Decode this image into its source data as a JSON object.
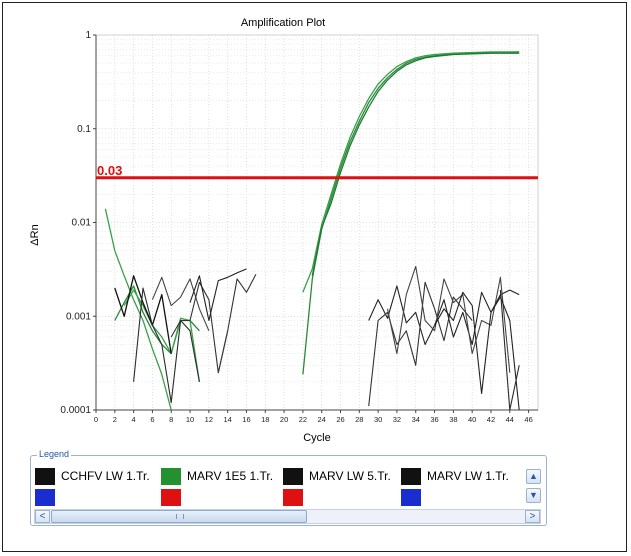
{
  "chart_data": {
    "type": "line",
    "title": "Amplification Plot",
    "xlabel": "Cycle",
    "ylabel": "ΔRn",
    "xlim": [
      0,
      47
    ],
    "ylim": [
      0.0001,
      1
    ],
    "y_scale": "log",
    "x_ticks": [
      0,
      2,
      4,
      6,
      8,
      10,
      12,
      14,
      16,
      18,
      20,
      22,
      24,
      26,
      28,
      30,
      32,
      34,
      36,
      38,
      40,
      42,
      44,
      46
    ],
    "y_ticks": [
      {
        "value": 1,
        "label": "1"
      },
      {
        "value": 0.1,
        "label": "0.1"
      },
      {
        "value": 0.01,
        "label": "0.01"
      },
      {
        "value": 0.001,
        "label": "0.001"
      },
      {
        "value": 0.0001,
        "label": "0.0001"
      }
    ],
    "grid": true,
    "threshold": {
      "value": 0.03,
      "label": "0.03",
      "color": "#dd1111"
    },
    "series": [
      {
        "name": "MARV 1E5 1.Tr.",
        "color": "#2a8a3a",
        "x": [
          22,
          23,
          24,
          25,
          26,
          27,
          28,
          29,
          30,
          31,
          32,
          33,
          34,
          35,
          36,
          38,
          40,
          42,
          45
        ],
        "y": [
          0.00024,
          0.0025,
          0.0085,
          0.018,
          0.038,
          0.072,
          0.12,
          0.19,
          0.27,
          0.35,
          0.43,
          0.5,
          0.55,
          0.58,
          0.6,
          0.63,
          0.64,
          0.65,
          0.66
        ]
      },
      {
        "name": "MARV 1E5 1.Tr.",
        "color": "#3aa04a",
        "x": [
          22,
          23,
          24,
          25,
          26,
          27,
          28,
          29,
          30,
          31,
          32,
          33,
          34,
          35,
          36,
          38,
          40,
          42,
          45
        ],
        "y": [
          0.0018,
          0.0032,
          0.0095,
          0.02,
          0.042,
          0.08,
          0.135,
          0.21,
          0.3,
          0.38,
          0.46,
          0.52,
          0.57,
          0.6,
          0.62,
          0.64,
          0.65,
          0.66,
          0.66
        ]
      },
      {
        "name": "MARV 1E5 1.Tr.",
        "color": "#1e7a32",
        "x": [
          23,
          24,
          25,
          26,
          27,
          28,
          29,
          30,
          31,
          32,
          33,
          34,
          35,
          36,
          38,
          40,
          42,
          45
        ],
        "y": [
          0.0027,
          0.0088,
          0.016,
          0.034,
          0.065,
          0.11,
          0.17,
          0.25,
          0.33,
          0.41,
          0.48,
          0.53,
          0.57,
          0.59,
          0.62,
          0.63,
          0.64,
          0.64
        ]
      },
      {
        "name": "MARV 1E5 1.Tr.",
        "color": "#3aa04a",
        "x": [
          1,
          2,
          3,
          4,
          5,
          6,
          7,
          8
        ],
        "y": [
          0.014,
          0.005,
          0.0027,
          0.0015,
          0.0009,
          0.00045,
          0.00024,
          0.0001
        ]
      },
      {
        "name": "MARV 1E5 1.Tr.",
        "color": "#2a8a3a",
        "x": [
          2,
          3,
          4,
          5,
          6,
          7,
          8,
          9,
          10,
          11
        ],
        "y": [
          0.0009,
          0.0014,
          0.0021,
          0.0011,
          0.0007,
          0.0005,
          0.0004,
          0.0009,
          0.0009,
          0.0007
        ]
      },
      {
        "name": "MARV 1E5 1.Tr.",
        "color": "#3aa04a",
        "x": [
          3,
          4,
          5,
          6,
          7,
          8,
          9,
          10,
          11
        ],
        "y": [
          0.0013,
          0.0019,
          0.0013,
          0.0008,
          0.0006,
          0.0004,
          0.00095,
          0.0009,
          0.0002
        ]
      },
      {
        "name": "CCHFV LW 1.Tr.",
        "color": "#111111",
        "x": [
          2,
          3,
          4,
          5,
          6,
          7,
          8
        ],
        "y": [
          0.002,
          0.001,
          0.0027,
          0.0014,
          0.0008,
          0.0017,
          0.0004
        ]
      },
      {
        "name": "MARV LW 5.Tr.",
        "color": "#2a2a2a",
        "x": [
          4,
          5,
          6,
          7,
          8,
          9,
          10,
          11
        ],
        "y": [
          0.0002,
          0.002,
          0.0008,
          0.0005,
          0.00012,
          0.0009,
          0.0007,
          0.0002
        ]
      },
      {
        "name": "MARV LW 1.Tr.",
        "color": "#444444",
        "x": [
          6,
          7,
          8,
          9,
          10,
          11,
          12
        ],
        "y": [
          0.0015,
          0.0026,
          0.0013,
          0.0016,
          0.0025,
          0.0012,
          0.0007
        ]
      },
      {
        "name": "CCHFV LW 1.Tr.",
        "color": "#333333",
        "x": [
          8,
          9,
          10,
          11,
          12,
          13,
          14,
          15,
          16,
          17
        ],
        "y": [
          0.0006,
          0.0009,
          0.0009,
          0.0023,
          0.0015,
          0.00025,
          0.0007,
          0.0025,
          0.0018,
          0.0028
        ]
      },
      {
        "name": "MARV LW 5.Tr.",
        "color": "#222222",
        "x": [
          10,
          11,
          12,
          13,
          14,
          15,
          16
        ],
        "y": [
          0.0014,
          0.0027,
          0.0009,
          0.0024,
          0.0026,
          0.0029,
          0.0032
        ]
      },
      {
        "name": "MARV LW 1.Tr.",
        "color": "#3a3a3a",
        "x": [
          13,
          14
        ],
        "y": [
          0.00025,
          0.0007
        ]
      },
      {
        "name": "CCHFV LW 1.Tr.",
        "color": "#222222",
        "x": [
          29,
          30,
          31,
          32,
          33,
          34,
          35,
          36,
          37,
          38,
          39,
          40,
          41,
          42,
          43,
          44,
          45
        ],
        "y": [
          0.0009,
          0.0015,
          0.00095,
          0.0021,
          0.00085,
          0.0011,
          0.0005,
          0.0008,
          0.0015,
          0.0006,
          0.0011,
          0.0005,
          0.0018,
          0.0011,
          0.0017,
          0.0019,
          0.0017
        ]
      },
      {
        "name": "MARV LW 5.Tr.",
        "color": "#333333",
        "x": [
          29,
          30,
          31,
          32,
          33,
          34,
          35,
          36,
          37,
          38,
          39,
          40
        ],
        "y": [
          0.00011,
          0.0009,
          0.0011,
          0.0005,
          0.0007,
          0.0003,
          0.0023,
          0.0012,
          0.00055,
          0.0016,
          0.0012,
          0.0009
        ]
      },
      {
        "name": "MARV LW 1.Tr.",
        "color": "#444444",
        "x": [
          31,
          32,
          33,
          34,
          35,
          36,
          37,
          38,
          39,
          40,
          41,
          42,
          43,
          44
        ],
        "y": [
          0.0012,
          0.0004,
          0.0017,
          0.0034,
          0.0009,
          0.0007,
          0.0025,
          0.0014,
          0.0017,
          0.0004,
          0.0009,
          0.0008,
          0.0026,
          0.00025
        ]
      },
      {
        "name": "CCHFV LW 1.Tr.",
        "color": "#222222",
        "x": [
          36,
          37,
          38,
          39,
          40,
          41,
          42,
          43,
          44,
          45
        ],
        "y": [
          0.0008,
          0.0012,
          0.0009,
          0.0018,
          0.0013,
          0.00015,
          0.0011,
          0.0016,
          0.0009,
          0.0001
        ]
      },
      {
        "name": "MARV LW 5.Tr.",
        "color": "#2a2a2a",
        "x": [
          43,
          44,
          45
        ],
        "y": [
          0.0019,
          0.0001,
          0.0003
        ]
      }
    ]
  },
  "legend": {
    "caption": "Legend",
    "items": [
      {
        "label": "CCHFV LW 1.Tr.",
        "color": "#111111"
      },
      {
        "label": "MARV 1E5 1.Tr.",
        "color": "#239130"
      },
      {
        "label": "MARV LW 5.Tr.",
        "color": "#111111"
      },
      {
        "label": "MARV LW 1.Tr.",
        "color": "#111111"
      }
    ],
    "partial_row_colors": [
      "#1a2ed0",
      "#dd1111",
      "#dd1111",
      "#1a2ed0"
    ]
  },
  "scroll": {
    "up": "▲",
    "down": "▼",
    "left": "<",
    "right": ">"
  }
}
